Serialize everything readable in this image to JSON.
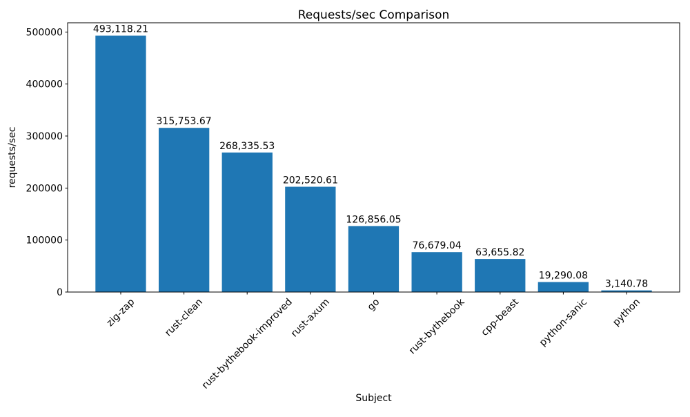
{
  "chart_data": {
    "type": "bar",
    "title": "Requests/sec Comparison",
    "xlabel": "Subject",
    "ylabel": "requests/sec",
    "categories": [
      "zig-zap",
      "rust-clean",
      "rust-bythebook-improved",
      "rust-axum",
      "go",
      "rust-bythebook",
      "cpp-beast",
      "python-sanic",
      "python"
    ],
    "values": [
      493118.21,
      315753.67,
      268335.53,
      202520.61,
      126856.05,
      76679.04,
      63655.82,
      19290.08,
      3140.78
    ],
    "bar_labels": [
      "493,118.21",
      "315,753.67",
      "268,335.53",
      "202,520.61",
      "126,856.05",
      "76,679.04",
      "63,655.82",
      "19,290.08",
      "3,140.78"
    ],
    "ylim": [
      0,
      517774
    ],
    "yticks": [
      0,
      100000,
      200000,
      300000,
      400000,
      500000
    ],
    "ytick_labels": [
      "0",
      "100000",
      "200000",
      "300000",
      "400000",
      "500000"
    ],
    "xtick_rotation": 45,
    "bar_color": "#1f77b4",
    "background_color": "#ffffff",
    "text_color": "#000000",
    "grid": false,
    "legend_position": "none"
  }
}
